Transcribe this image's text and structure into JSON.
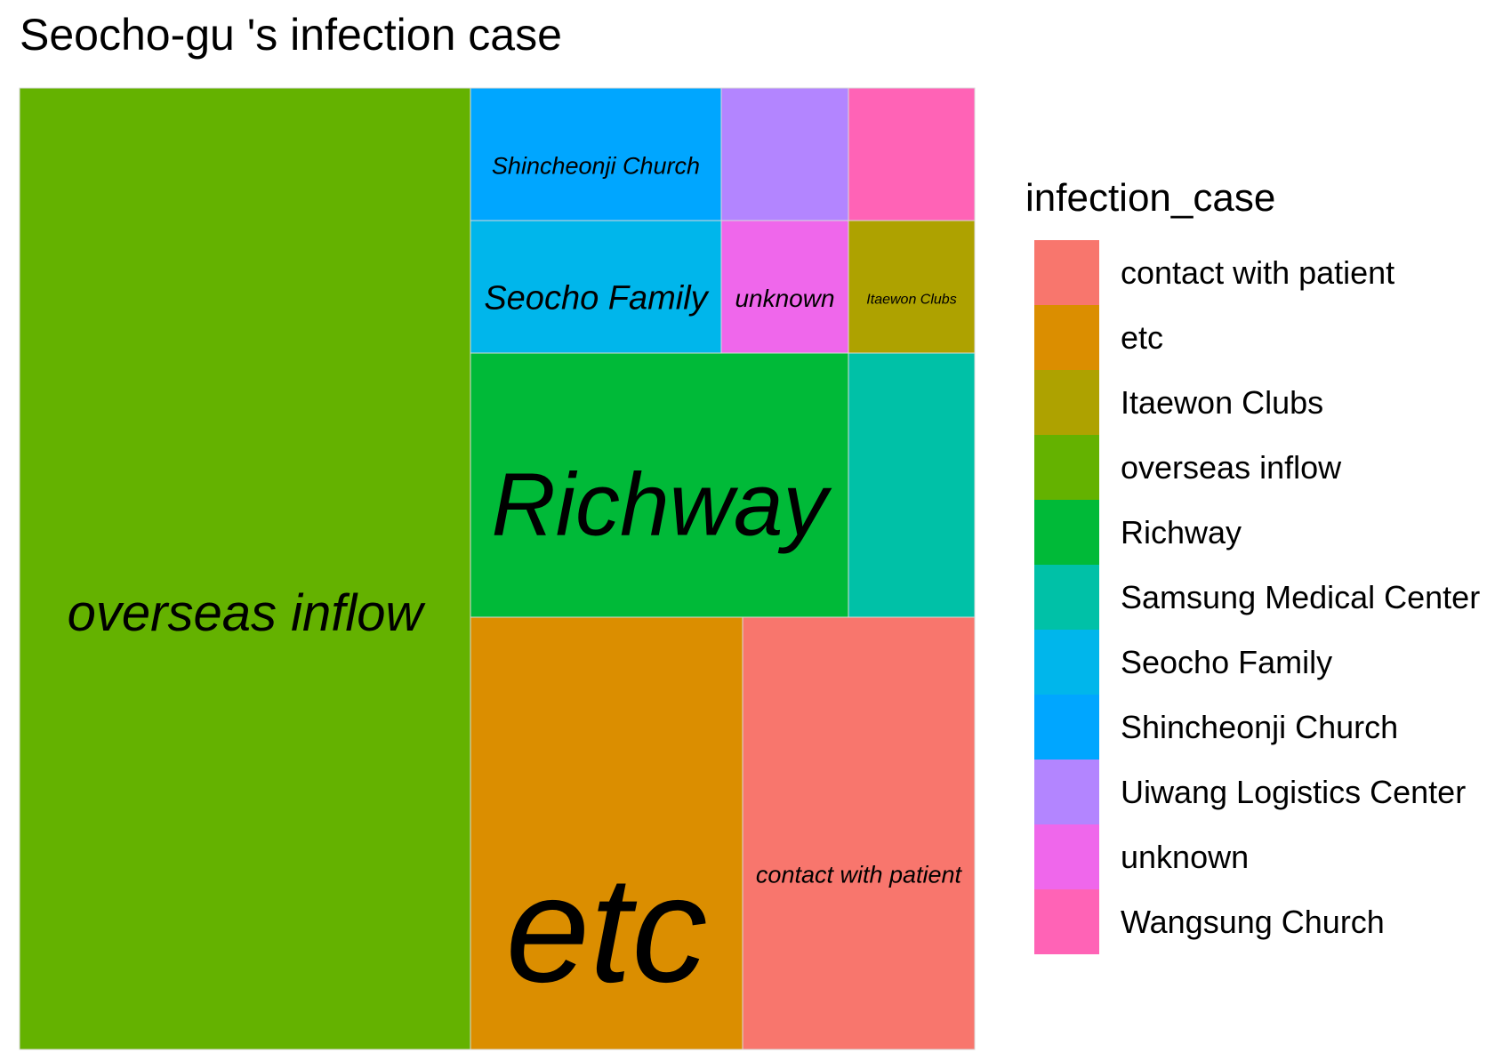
{
  "title": "Seocho-gu 's infection case",
  "chart_data": {
    "type": "treemap",
    "title": "Seocho-gu 's infection case",
    "legend_title": "infection_case",
    "legend_position": "right",
    "tiles": [
      {
        "name": "overseas inflow",
        "value": 46,
        "color": "#64B200",
        "label": "overseas inflow"
      },
      {
        "name": "etc",
        "value": 15,
        "color": "#DB8E00",
        "label": "etc"
      },
      {
        "name": "contact with patient",
        "value": 13,
        "color": "#F8766D",
        "label": "contact with patient"
      },
      {
        "name": "Richway",
        "value": 10,
        "color": "#00BA38",
        "label": "Richway"
      },
      {
        "name": "Samsung Medical Center",
        "value": 3.5,
        "color": "#00C1A7",
        "label": ""
      },
      {
        "name": "Shincheonji Church",
        "value": 3.5,
        "color": "#00A6FF",
        "label": "Shincheonji Church"
      },
      {
        "name": "Seocho Family",
        "value": 3.5,
        "color": "#00B6EB",
        "label": "Seocho Family"
      },
      {
        "name": "Uiwang Logistics Center",
        "value": 1.75,
        "color": "#B385FF",
        "label": ""
      },
      {
        "name": "Wangsung Church",
        "value": 1.75,
        "color": "#FF63B6",
        "label": ""
      },
      {
        "name": "unknown",
        "value": 1.75,
        "color": "#EF67EB",
        "label": "unknown"
      },
      {
        "name": "Itaewon Clubs",
        "value": 1.75,
        "color": "#AEA200",
        "label": "Itaewon Clubs"
      }
    ],
    "legend": [
      {
        "label": "contact with patient",
        "color": "#F8766D"
      },
      {
        "label": "etc",
        "color": "#DB8E00"
      },
      {
        "label": "Itaewon Clubs",
        "color": "#AEA200"
      },
      {
        "label": "overseas inflow",
        "color": "#64B200"
      },
      {
        "label": "Richway",
        "color": "#00BA38"
      },
      {
        "label": "Samsung Medical Center",
        "color": "#00C1A7"
      },
      {
        "label": "Seocho Family",
        "color": "#00B6EB"
      },
      {
        "label": "Shincheonji Church",
        "color": "#00A6FF"
      },
      {
        "label": "Uiwang Logistics Center",
        "color": "#B385FF"
      },
      {
        "label": "unknown",
        "color": "#EF67EB"
      },
      {
        "label": "Wangsung Church",
        "color": "#FF63B6"
      }
    ]
  }
}
